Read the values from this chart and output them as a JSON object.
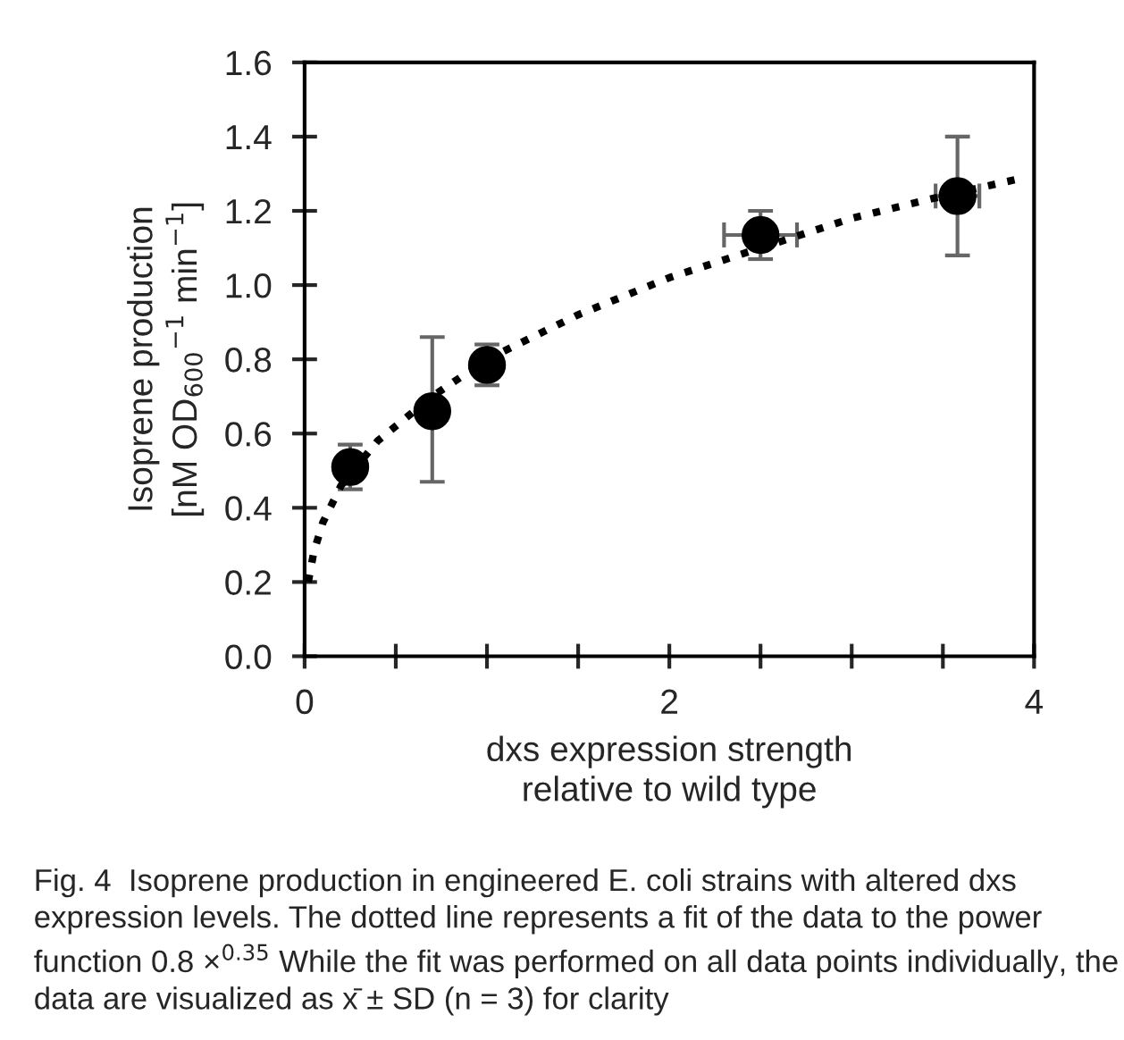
{
  "chart_data": {
    "type": "scatter",
    "xlabel": "dxs expression strength\nrelative to wild type",
    "ylabel": "Isoprene production\n[nM OD$_{600}$$^{−1}$ min$^{−1}$]",
    "xlim": [
      0,
      4
    ],
    "ylim": [
      0,
      1.6
    ],
    "xticks": [
      0,
      {
        "value": 0.5,
        "label": null
      },
      {
        "value": 1,
        "label": null
      },
      {
        "value": 1.5,
        "label": null
      },
      2,
      {
        "value": 2.5,
        "label": null
      },
      {
        "value": 3,
        "label": null
      },
      {
        "value": 3.5,
        "label": null
      },
      4
    ],
    "yticks": [
      {
        "value": 0,
        "label": "0.0"
      },
      {
        "value": 0.2,
        "label": "0.2"
      },
      {
        "value": 0.4,
        "label": "0.4"
      },
      {
        "value": 0.6,
        "label": "0.6"
      },
      {
        "value": 0.8,
        "label": "0.8"
      },
      {
        "value": 1.0,
        "label": "1.0"
      },
      {
        "value": 1.2,
        "label": "1.2"
      },
      {
        "value": 1.4,
        "label": "1.4"
      },
      {
        "value": 1.6,
        "label": "1.6"
      }
    ],
    "grid": false,
    "legend": false,
    "series": [
      {
        "type": "line",
        "color": "#000000",
        "line_style": "dotted",
        "marker": "none",
        "x": [
          0.02,
          0.05,
          0.1,
          0.2,
          0.4,
          0.7,
          1.0,
          1.5,
          2.0,
          2.5,
          3.0,
          3.5,
          3.95
        ],
        "values": [
          0.2,
          0.28,
          0.36,
          0.46,
          0.58,
          0.7,
          0.8,
          0.92,
          1.02,
          1.1,
          1.18,
          1.24,
          1.29
        ]
      },
      {
        "color": "#000000",
        "marker": "circle",
        "x": [
          0.25,
          0.7,
          1.0,
          2.5,
          3.58
        ],
        "values": [
          0.51,
          0.66,
          0.785,
          1.135,
          1.24
        ],
        "errors": [
          [
            0.45,
            0.57
          ],
          [
            0.47,
            0.86
          ],
          [
            0.73,
            0.84
          ],
          [
            1.07,
            1.2
          ],
          [
            1.08,
            1.4
          ]
        ],
        "xerrors": [
          null,
          null,
          null,
          [
            2.3,
            2.7
          ],
          [
            3.46,
            3.7
          ]
        ]
      }
    ],
    "annotations": [
      "Fig. 4  Isoprene production in engineered E. coli strains with altered dxs expression levels. The dotted line represents a fit of the data to the power function 0.8 ×$^{0.35}$ While the fit was performed on all data points individually, the data are visualized as x̄ ± SD (n = 3) for clarity"
    ]
  }
}
